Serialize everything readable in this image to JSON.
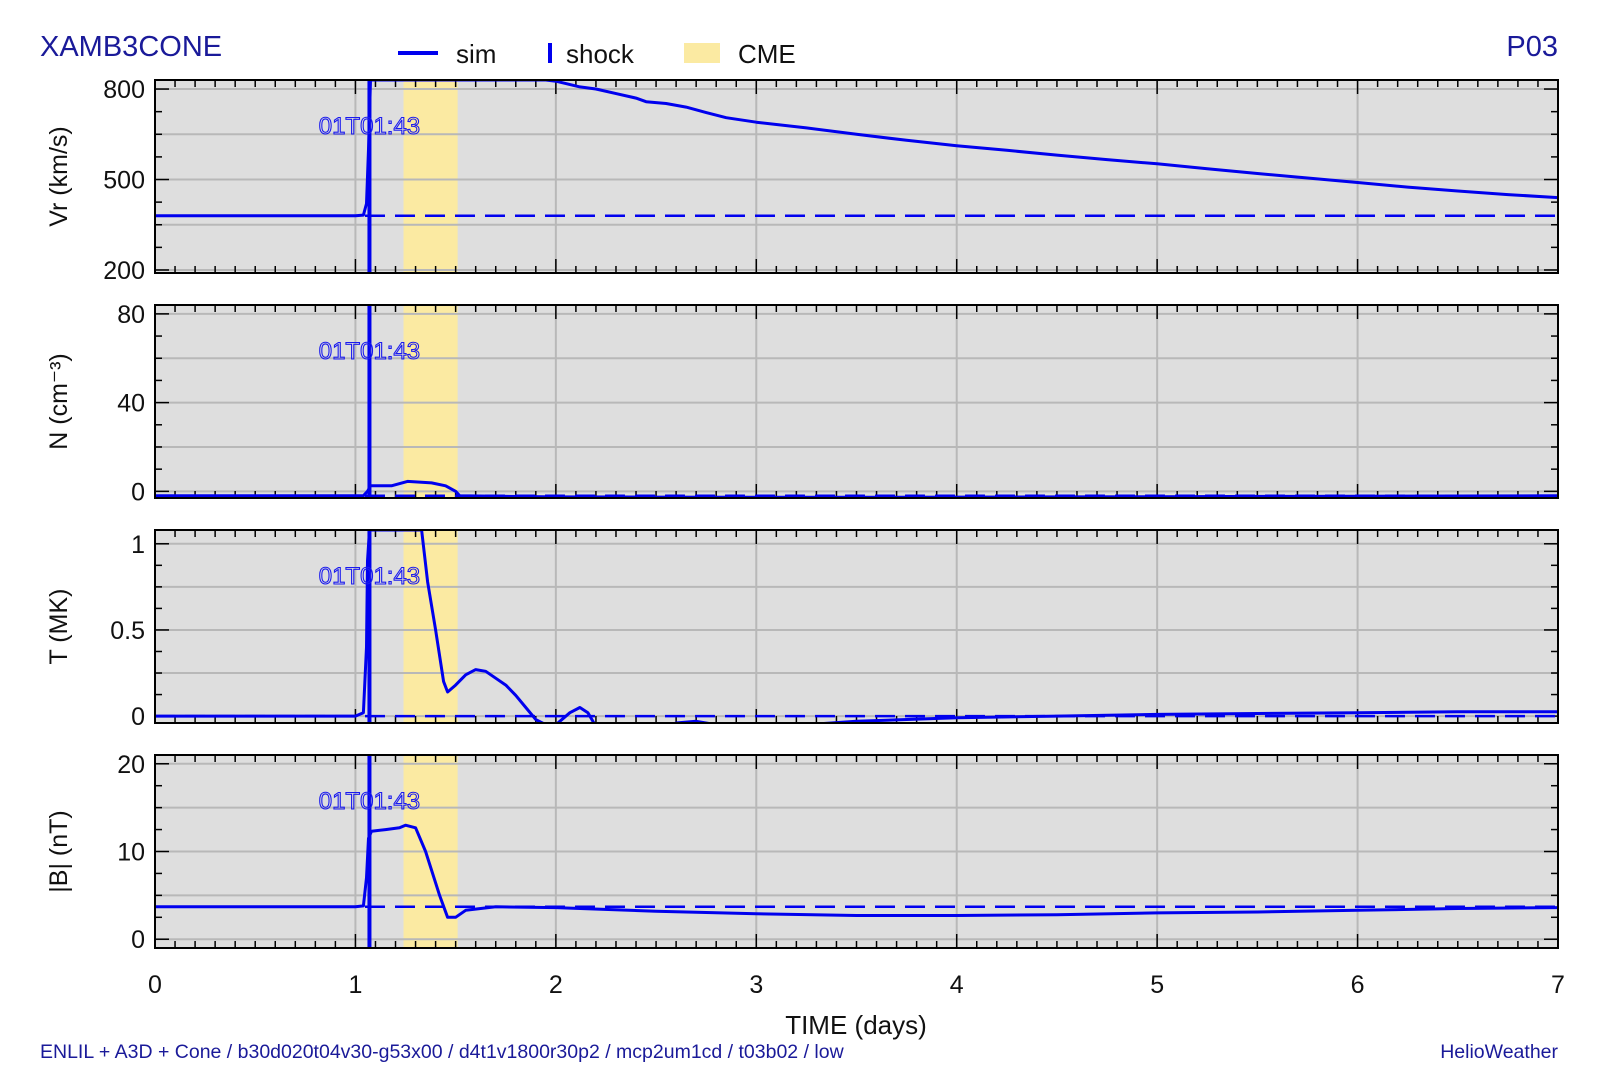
{
  "header": {
    "run_name": "XAMB3CONE",
    "panel_id": "P03"
  },
  "footer": {
    "run_info": "ENLIL + A3D + Cone / b30d020t04v30-g53x00 / d4t1v1800r30p2 / mcp2um1cd / t03b02 / low",
    "brand": "HelioWeather"
  },
  "legend": {
    "sim_label": "sim",
    "shock_label": "shock",
    "cme_label": "CME"
  },
  "colors": {
    "sim": "#0000ee",
    "cme": "#fbeaa2",
    "panel_bg": "#dedede",
    "grid": "#b8b8b8",
    "title_text": "#1a1a99"
  },
  "chart_data": {
    "type": "line",
    "xlabel": "TIME (days)",
    "xlim": [
      0,
      7
    ],
    "x_ticks": [
      0,
      1,
      2,
      3,
      4,
      5,
      6,
      7
    ],
    "shock": {
      "x": 1.07,
      "label": "01T01:43"
    },
    "cme_span": [
      1.24,
      1.51
    ],
    "panels": [
      {
        "ylabel": "Vr (km/s)",
        "ylim": [
          190,
          830
        ],
        "y_ticks": [
          200,
          500,
          800
        ],
        "baseline": 380,
        "series": [
          [
            0,
            380
          ],
          [
            1.0,
            380
          ],
          [
            1.04,
            382
          ],
          [
            1.055,
            420
          ],
          [
            1.065,
            600
          ],
          [
            1.075,
            830
          ],
          [
            1.95,
            830
          ],
          [
            2.0,
            826
          ],
          [
            2.05,
            818
          ],
          [
            2.12,
            807
          ],
          [
            2.2,
            800
          ],
          [
            2.3,
            785
          ],
          [
            2.4,
            770
          ],
          [
            2.45,
            758
          ],
          [
            2.55,
            752
          ],
          [
            2.65,
            740
          ],
          [
            2.75,
            722
          ],
          [
            2.85,
            705
          ],
          [
            3.0,
            690
          ],
          [
            3.25,
            671
          ],
          [
            3.5,
            650
          ],
          [
            3.75,
            630
          ],
          [
            4.0,
            612
          ],
          [
            4.25,
            597
          ],
          [
            4.5,
            581
          ],
          [
            4.75,
            566
          ],
          [
            5.0,
            552
          ],
          [
            5.25,
            536
          ],
          [
            5.5,
            520
          ],
          [
            5.75,
            505
          ],
          [
            6.0,
            490
          ],
          [
            6.25,
            475
          ],
          [
            6.5,
            462
          ],
          [
            6.75,
            450
          ],
          [
            7.0,
            440
          ]
        ]
      },
      {
        "ylabel": "N (cm⁻³)",
        "ylim": [
          -3,
          84
        ],
        "y_ticks": [
          0,
          40,
          80
        ],
        "baseline": -2,
        "series": [
          [
            0,
            -2
          ],
          [
            1.04,
            -2
          ],
          [
            1.06,
            0
          ],
          [
            1.075,
            2.5
          ],
          [
            1.12,
            2.5
          ],
          [
            1.18,
            2.5
          ],
          [
            1.26,
            4.5
          ],
          [
            1.38,
            3.8
          ],
          [
            1.45,
            2.5
          ],
          [
            1.5,
            0
          ],
          [
            1.52,
            -2
          ],
          [
            2.0,
            -2.5
          ],
          [
            2.5,
            -2.6
          ],
          [
            3.0,
            -2.7
          ],
          [
            3.5,
            -2.7
          ],
          [
            4.0,
            -2.6
          ],
          [
            4.5,
            -2.5
          ],
          [
            5.0,
            -2.4
          ],
          [
            5.5,
            -2.3
          ],
          [
            6.0,
            -2.2
          ],
          [
            6.5,
            -2.1
          ],
          [
            7.0,
            -2.0
          ]
        ]
      },
      {
        "ylabel": "T (MK)",
        "ylim": [
          -0.04,
          1.08
        ],
        "y_ticks": [
          0,
          0.5,
          1
        ],
        "baseline": 0,
        "series": [
          [
            0,
            0
          ],
          [
            1.0,
            0
          ],
          [
            1.04,
            0.02
          ],
          [
            1.055,
            0.4
          ],
          [
            1.06,
            0.9
          ],
          [
            1.07,
            1.08
          ],
          [
            1.33,
            1.08
          ],
          [
            1.36,
            0.78
          ],
          [
            1.4,
            0.5
          ],
          [
            1.44,
            0.2
          ],
          [
            1.46,
            0.14
          ],
          [
            1.5,
            0.18
          ],
          [
            1.55,
            0.24
          ],
          [
            1.6,
            0.27
          ],
          [
            1.65,
            0.26
          ],
          [
            1.7,
            0.22
          ],
          [
            1.75,
            0.18
          ],
          [
            1.8,
            0.12
          ],
          [
            1.85,
            0.05
          ],
          [
            1.9,
            -0.02
          ],
          [
            1.95,
            -0.05
          ],
          [
            2.0,
            -0.05
          ],
          [
            2.07,
            0.02
          ],
          [
            2.12,
            0.05
          ],
          [
            2.16,
            0.02
          ],
          [
            2.2,
            -0.06
          ],
          [
            2.55,
            -0.06
          ],
          [
            2.6,
            -0.04
          ],
          [
            2.7,
            -0.03
          ],
          [
            2.8,
            -0.05
          ],
          [
            2.87,
            -0.06
          ],
          [
            3.1,
            -0.06
          ],
          [
            3.25,
            -0.05
          ],
          [
            3.5,
            -0.03
          ],
          [
            4.0,
            -0.01
          ],
          [
            4.5,
            0.0
          ],
          [
            5.0,
            0.01
          ],
          [
            5.5,
            0.015
          ],
          [
            6.0,
            0.02
          ],
          [
            6.5,
            0.025
          ],
          [
            7.0,
            0.025
          ]
        ]
      },
      {
        "ylabel": "|B| (nT)",
        "ylim": [
          -1,
          21
        ],
        "y_ticks": [
          0,
          10,
          20
        ],
        "baseline": 3.7,
        "series": [
          [
            0,
            3.7
          ],
          [
            1.0,
            3.7
          ],
          [
            1.04,
            3.8
          ],
          [
            1.055,
            7.0
          ],
          [
            1.065,
            11.5
          ],
          [
            1.08,
            12.3
          ],
          [
            1.15,
            12.5
          ],
          [
            1.22,
            12.7
          ],
          [
            1.25,
            13.0
          ],
          [
            1.3,
            12.7
          ],
          [
            1.35,
            10.0
          ],
          [
            1.42,
            5.0
          ],
          [
            1.46,
            2.5
          ],
          [
            1.5,
            2.5
          ],
          [
            1.55,
            3.3
          ],
          [
            1.7,
            3.7
          ],
          [
            2.0,
            3.6
          ],
          [
            2.5,
            3.2
          ],
          [
            3.0,
            2.9
          ],
          [
            3.5,
            2.7
          ],
          [
            4.0,
            2.7
          ],
          [
            4.5,
            2.8
          ],
          [
            5.0,
            3.0
          ],
          [
            5.5,
            3.1
          ],
          [
            6.0,
            3.3
          ],
          [
            6.5,
            3.5
          ],
          [
            7.0,
            3.6
          ]
        ]
      }
    ]
  }
}
